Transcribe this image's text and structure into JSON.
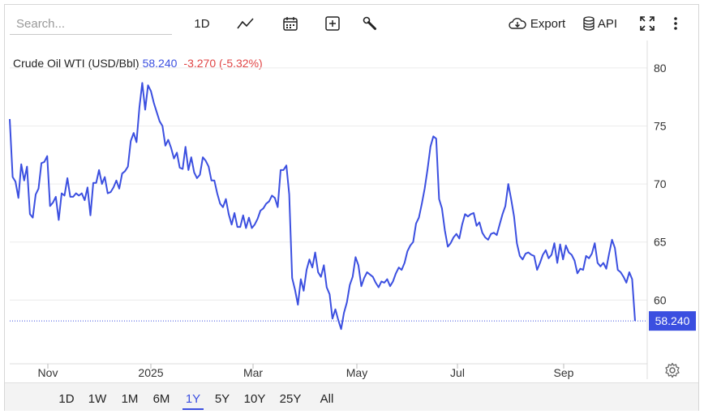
{
  "search": {
    "placeholder": "Search..."
  },
  "toolbar": {
    "interval_label": "1D",
    "export_label": "Export",
    "api_label": "API"
  },
  "legend": {
    "name": "Crude Oil WTI (USD/Bbl)",
    "last": "58.240",
    "change": "-3.270 (-5.32%)"
  },
  "price_tag": "58.240",
  "ranges": [
    "1D",
    "1W",
    "1M",
    "6M",
    "1Y",
    "5Y",
    "10Y",
    "25Y",
    "All"
  ],
  "active_range": "1Y",
  "colors": {
    "line": "#3b4fe0",
    "negative": "#e04444",
    "grid": "#ececec"
  },
  "icons": [
    "line-chart-icon",
    "calendar-icon",
    "add-indicator-icon",
    "wrench-icon",
    "cloud-download-icon",
    "database-icon",
    "fullscreen-icon",
    "more-vertical-icon",
    "gear-icon"
  ],
  "chart_data": {
    "type": "line",
    "title": "Crude Oil WTI (USD/Bbl)",
    "xlabel": "",
    "ylabel": "",
    "x_tick_labels": [
      "Nov",
      "2025",
      "Mar",
      "May",
      "Jul",
      "Sep"
    ],
    "y_tick_labels": [
      "60",
      "65",
      "70",
      "75",
      "80"
    ],
    "ylim": [
      55.0,
      82.5
    ],
    "grid": true,
    "series": [
      {
        "name": "Crude Oil WTI (USD/Bbl)",
        "values": [
          75.6,
          70.6,
          70.2,
          68.8,
          71.7,
          70.3,
          71.5,
          67.4,
          67.1,
          69.1,
          69.6,
          71.8,
          71.9,
          72.4,
          68.1,
          68.4,
          68.9,
          66.9,
          69.2,
          69.0,
          70.5,
          68.9,
          68.9,
          69.2,
          69.0,
          69.2,
          68.6,
          69.7,
          67.3,
          70.1,
          70.1,
          71.2,
          70.0,
          70.6,
          69.2,
          69.3,
          69.7,
          70.3,
          69.6,
          70.9,
          71.1,
          71.5,
          73.7,
          74.4,
          73.6,
          76.6,
          78.7,
          76.4,
          78.5,
          78.0,
          77.0,
          76.2,
          75.4,
          75.0,
          73.3,
          73.8,
          73.1,
          72.2,
          72.7,
          71.4,
          71.3,
          73.2,
          71.2,
          72.3,
          71.0,
          70.5,
          70.8,
          72.3,
          72.0,
          71.5,
          70.3,
          70.3,
          69.2,
          68.3,
          68.0,
          68.7,
          67.4,
          66.5,
          67.5,
          66.3,
          66.3,
          67.3,
          66.2,
          67.1,
          66.2,
          66.5,
          67.0,
          67.7,
          67.9,
          68.3,
          68.5,
          69.0,
          68.8,
          68.0,
          71.2,
          71.2,
          71.6,
          69.1,
          61.9,
          60.9,
          59.6,
          61.8,
          60.8,
          62.6,
          63.5,
          62.8,
          64.1,
          62.4,
          62.0,
          63.0,
          61.1,
          60.5,
          58.4,
          59.2,
          58.3,
          57.5,
          58.9,
          59.8,
          61.3,
          62.0,
          63.7,
          63.0,
          61.2,
          61.9,
          62.4,
          62.2,
          62.0,
          61.5,
          61.1,
          61.6,
          61.5,
          61.8,
          61.2,
          61.6,
          62.3,
          62.8,
          62.6,
          63.2,
          64.2,
          64.7,
          65.0,
          66.6,
          67.1,
          68.3,
          69.6,
          71.3,
          73.2,
          74.1,
          73.9,
          68.7,
          67.9,
          66.0,
          64.6,
          64.9,
          65.4,
          65.7,
          65.3,
          66.5,
          67.4,
          67.2,
          67.4,
          67.5,
          66.4,
          66.7,
          65.8,
          65.4,
          65.2,
          65.7,
          65.8,
          65.6,
          66.5,
          67.4,
          68.1,
          70.0,
          68.7,
          67.2,
          64.9,
          63.8,
          63.5,
          64.0,
          64.1,
          63.9,
          63.8,
          62.6,
          63.2,
          63.9,
          64.3,
          63.6,
          63.9,
          64.9,
          63.2,
          64.8,
          63.5,
          64.7,
          64.1,
          63.9,
          63.4,
          62.3,
          62.7,
          62.6,
          63.8,
          63.6,
          64.0,
          64.9,
          63.2,
          62.9,
          63.2,
          62.7,
          64.0,
          65.2,
          64.5,
          62.6,
          62.4,
          62.0,
          61.5,
          62.4,
          61.8,
          58.2
        ]
      }
    ]
  }
}
